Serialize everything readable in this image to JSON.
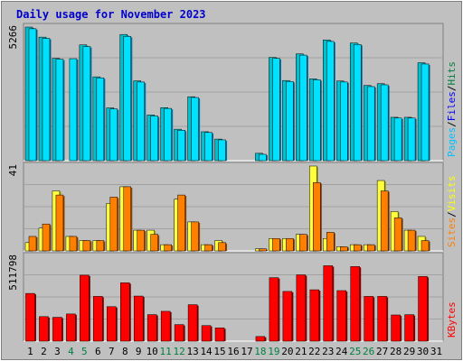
{
  "chart_data": {
    "type": "bar",
    "title": "Daily usage for November 2023",
    "categories": [
      "1",
      "2",
      "3",
      "4",
      "5",
      "6",
      "7",
      "8",
      "9",
      "10",
      "11",
      "12",
      "13",
      "14",
      "15",
      "16",
      "17",
      "18",
      "19",
      "20",
      "21",
      "22",
      "23",
      "24",
      "25",
      "26",
      "27",
      "28",
      "29",
      "30",
      "31"
    ],
    "weekend_days": [
      4,
      5,
      11,
      12,
      18,
      19,
      25,
      26
    ],
    "panels": [
      {
        "id": "hits",
        "ymax_label": "5266",
        "ymax": 5266,
        "legend": [
          "Pages",
          "/",
          "Files",
          "/",
          "Hits"
        ],
        "series": [
          {
            "name": "Hits",
            "values": [
              5266,
              4870,
              4030,
              0,
              4565,
              3305,
              2080,
              4975,
              3148,
              1800,
              2090,
              1240,
              2520,
              1140,
              850,
              0,
              0,
              290,
              4070,
              3160,
              4210,
              3225,
              4760,
              3140,
              4640,
              2965,
              3035,
              1710,
              1710,
              3860,
              0
            ]
          },
          {
            "name": "Files",
            "values": [
              5200,
              4820,
              4000,
              4020,
              4500,
              3265,
              2040,
              4900,
              3100,
              1760,
              2060,
              1200,
              2490,
              1110,
              820,
              0,
              0,
              250,
              4030,
              3120,
              4160,
              3190,
              4700,
              3100,
              4580,
              2920,
              2990,
              1680,
              1680,
              3810,
              0
            ]
          },
          {
            "name": "Pages",
            "values": [
              0,
              0,
              0,
              0,
              0,
              0,
              0,
              0,
              0,
              0,
              0,
              0,
              0,
              0,
              0,
              0,
              0,
              0,
              0,
              0,
              0,
              0,
              0,
              0,
              0,
              0,
              0,
              0,
              0,
              0,
              0
            ]
          }
        ]
      },
      {
        "id": "visits",
        "ymax_label": "41",
        "ymax": 41,
        "legend": [
          "Sites",
          "/",
          "Visits"
        ],
        "series": [
          {
            "name": "Visits",
            "values": [
              4,
              11,
              29,
              7,
              5,
              5,
              23,
              31,
              10,
              10,
              3,
              25,
              14,
              3,
              5,
              0,
              0,
              1,
              6,
              6,
              8,
              41,
              6,
              2,
              3,
              3,
              34,
              19,
              10,
              7,
              0
            ]
          },
          {
            "name": "Sites",
            "values": [
              7,
              13,
              27,
              7,
              5,
              5,
              26,
              31,
              10,
              8,
              3,
              27,
              14,
              3,
              4,
              0,
              0,
              1,
              6,
              6,
              8,
              33,
              9,
              2,
              3,
              3,
              29,
              16,
              10,
              5,
              0
            ]
          }
        ]
      },
      {
        "id": "kbytes",
        "ymax_label": "511798",
        "ymax": 511798,
        "legend": [
          "KBytes"
        ],
        "series": [
          {
            "name": "KBytes",
            "values": [
              288000,
              148000,
              144000,
              164000,
              398000,
              270000,
              208000,
              352000,
              272000,
              160000,
              180000,
              100000,
              220000,
              94000,
              80000,
              0,
              0,
              28000,
              383000,
              300000,
              400000,
              310000,
              455000,
              305000,
              450000,
              270000,
              270000,
              158000,
              160000,
              390000,
              0
            ]
          }
        ]
      }
    ]
  }
}
